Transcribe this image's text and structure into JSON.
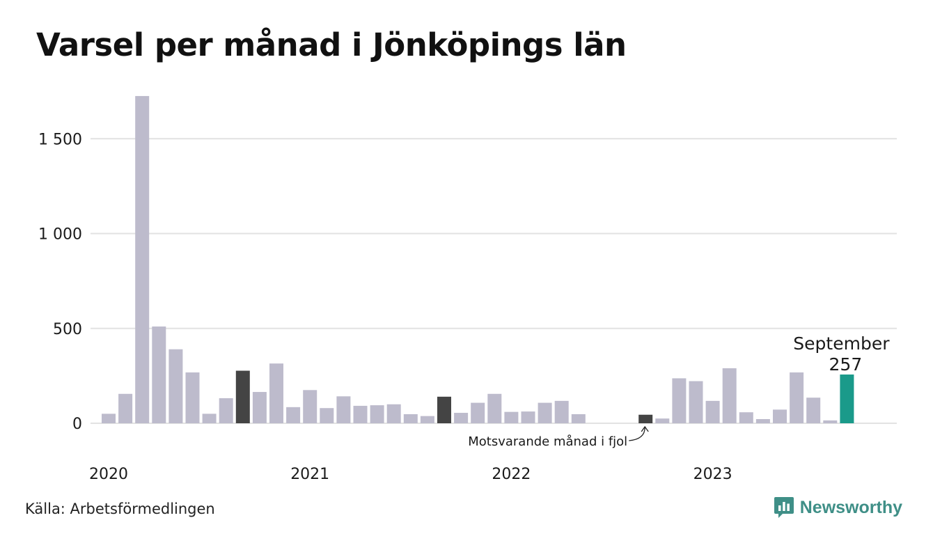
{
  "colors": {
    "bar_default": "#bdbbcc",
    "bar_same_month_prior_year": "#444444",
    "bar_current": "#1a9a8a",
    "gridline": "#e2e2e2",
    "brand": "#3f8f87"
  },
  "source": "Källa: Arbetsförmedlingen",
  "brand": {
    "name": "Newsworthy",
    "icon": "newsworthy-logo-icon"
  },
  "chart_data": {
    "type": "bar",
    "title": "Varsel per månad i Jönköpings län",
    "xlabel": "",
    "ylabel": "",
    "ylim": [
      0,
      1750
    ],
    "yticks": [
      0,
      500,
      1000,
      1500
    ],
    "ytick_labels": [
      "0",
      "500",
      "1 000",
      "1 500"
    ],
    "xtick_labels": [
      "2020",
      "2021",
      "2022",
      "2023"
    ],
    "grid": true,
    "categories": [
      "2020-01",
      "2020-02",
      "2020-03",
      "2020-04",
      "2020-05",
      "2020-06",
      "2020-07",
      "2020-08",
      "2020-09",
      "2020-10",
      "2020-11",
      "2020-12",
      "2021-01",
      "2021-02",
      "2021-03",
      "2021-04",
      "2021-05",
      "2021-06",
      "2021-07",
      "2021-08",
      "2021-09",
      "2021-10",
      "2021-11",
      "2021-12",
      "2022-01",
      "2022-02",
      "2022-03",
      "2022-04",
      "2022-05",
      "2022-06",
      "2022-07",
      "2022-08",
      "2022-09",
      "2022-10",
      "2022-11",
      "2022-12",
      "2023-01",
      "2023-02",
      "2023-03",
      "2023-04",
      "2023-05",
      "2023-06",
      "2023-07",
      "2023-08",
      "2023-09"
    ],
    "values": [
      50,
      155,
      1725,
      510,
      390,
      268,
      50,
      132,
      277,
      165,
      315,
      85,
      175,
      80,
      142,
      92,
      95,
      100,
      48,
      38,
      140,
      55,
      108,
      155,
      60,
      62,
      108,
      118,
      48,
      0,
      0,
      0,
      45,
      25,
      237,
      222,
      118,
      290,
      58,
      22,
      72,
      268,
      135,
      15,
      257
    ],
    "highlighted_prior_years": [
      "2020-09",
      "2021-09",
      "2022-09"
    ],
    "highlight": {
      "category": "2023-09",
      "label": "September",
      "value_label": "257"
    },
    "annotation": {
      "text": "Motsvarande månad i fjol",
      "target": "2022-09"
    }
  }
}
